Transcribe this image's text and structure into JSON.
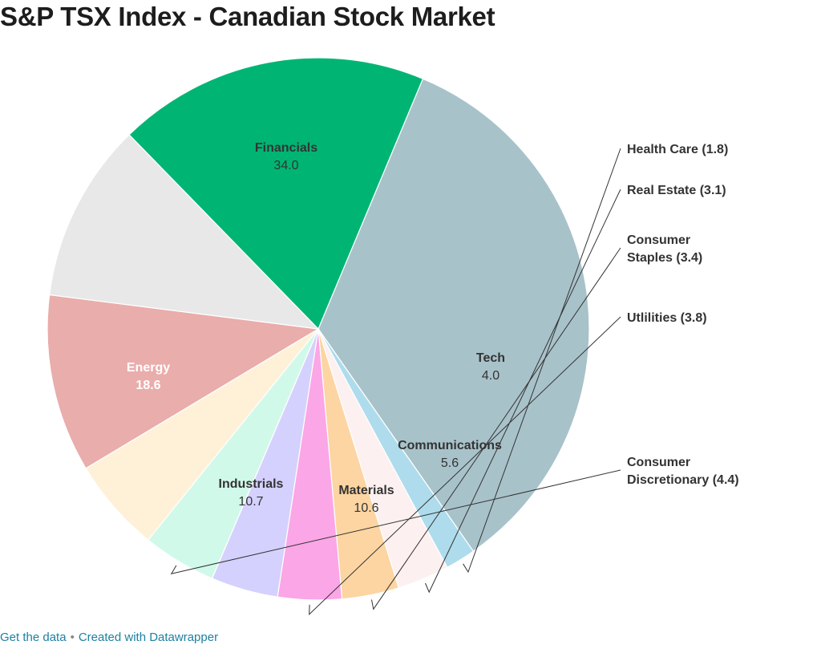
{
  "title": "S&P TSX Index - Canadian Stock Market",
  "footer": {
    "get_data": "Get the data",
    "separator": "•",
    "created_with": "Created with Datawrapper"
  },
  "chart_data": {
    "type": "pie",
    "title": "S&P TSX Index - Canadian Stock Market",
    "slices": [
      {
        "label": "Financials",
        "value": 34.0,
        "value_text": "34.0",
        "color": "#a8c2ca",
        "label_mode": "inside",
        "text_color": "#333333"
      },
      {
        "label": "Health Care",
        "value": 1.8,
        "label_text": "Health Care (1.8)",
        "color": "#aedcec",
        "label_mode": "outside"
      },
      {
        "label": "Real Estate",
        "value": 3.1,
        "label_text": "Real Estate (3.1)",
        "color": "#fdf0f0",
        "label_mode": "outside"
      },
      {
        "label": "Consumer Staples",
        "value": 3.4,
        "label_lines": [
          "Consumer",
          "Staples (3.4)"
        ],
        "color": "#fcd5a2",
        "label_mode": "outside"
      },
      {
        "label": "Utlilities",
        "value": 3.8,
        "label_text": "Utlilities (3.8)",
        "color": "#fba6e6",
        "label_mode": "outside"
      },
      {
        "label": "Tech",
        "value": 4.0,
        "value_text": "4.0",
        "color": "#d5d1fe",
        "label_mode": "inside",
        "text_color": "#333333"
      },
      {
        "label": "Consumer Discretionary",
        "value": 4.4,
        "label_lines": [
          "Consumer",
          "Discretionary (4.4)"
        ],
        "color": "#d1f9ea",
        "label_mode": "outside"
      },
      {
        "label": "Communications",
        "value": 5.6,
        "value_text": "5.6",
        "color": "#fef1d8",
        "label_mode": "inside",
        "text_color": "#333333"
      },
      {
        "label": "Materials",
        "value": 10.6,
        "value_text": "10.6",
        "color": "#e9adac",
        "label_mode": "inside",
        "text_color": "#333333"
      },
      {
        "label": "Industrials",
        "value": 10.7,
        "value_text": "10.7",
        "color": "#e8e8e8",
        "label_mode": "inside",
        "text_color": "#333333"
      },
      {
        "label": "Energy",
        "value": 18.6,
        "value_text": "18.6",
        "color": "#00b574",
        "label_mode": "inside",
        "text_color": "#ffffff"
      }
    ]
  }
}
